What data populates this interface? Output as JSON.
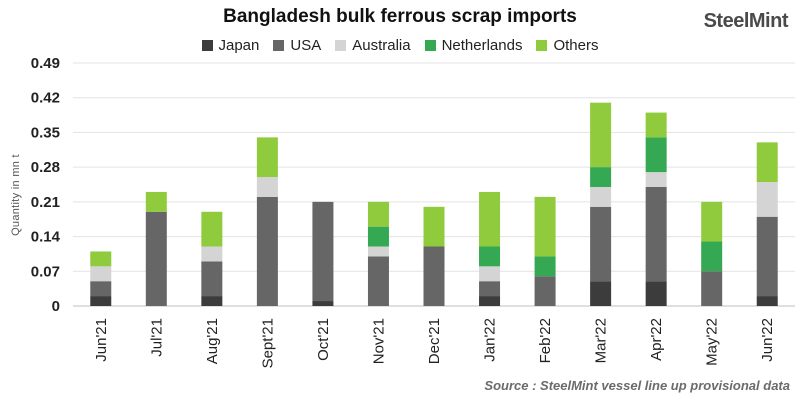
{
  "brand": "SteelMint",
  "source": "Source : SteelMint  vessel line up provisional data",
  "chart_data": {
    "type": "bar",
    "stacked": true,
    "title": "Bangladesh bulk ferrous scrap imports",
    "ylabel": "Quantity in mn t",
    "xlabel": "",
    "ylim": [
      0,
      0.49
    ],
    "yticks": [
      "0",
      "0.07",
      "0.14",
      "0.21",
      "0.28",
      "0.35",
      "0.42",
      "0.49"
    ],
    "grid": true,
    "legend_position": "top",
    "categories": [
      "Jun'21",
      "Jul'21",
      "Aug'21",
      "Sept'21",
      "Oct'21",
      "Nov'21",
      "Dec'21",
      "Jan'22",
      "Feb'22",
      "Mar'22",
      "Apr'22",
      "May'22",
      "Jun'22"
    ],
    "series": [
      {
        "name": "Japan",
        "color": "#3c3c3c",
        "values": [
          0.02,
          0,
          0.02,
          0,
          0.01,
          0,
          0,
          0.02,
          0,
          0.05,
          0.05,
          0,
          0.02
        ]
      },
      {
        "name": "USA",
        "color": "#666666",
        "values": [
          0.03,
          0.19,
          0.07,
          0.22,
          0.2,
          0.1,
          0.12,
          0.03,
          0.06,
          0.15,
          0.19,
          0.07,
          0.16
        ]
      },
      {
        "name": "Australia",
        "color": "#d4d4d4",
        "values": [
          0.03,
          0,
          0.03,
          0.04,
          0,
          0.02,
          0,
          0.03,
          0,
          0.04,
          0.03,
          0,
          0.07
        ]
      },
      {
        "name": "Netherlands",
        "color": "#34a853",
        "values": [
          0,
          0,
          0,
          0,
          0,
          0.04,
          0,
          0.04,
          0.04,
          0.04,
          0.07,
          0.06,
          0
        ]
      },
      {
        "name": "Others",
        "color": "#8fcb3c",
        "values": [
          0.03,
          0.04,
          0.07,
          0.08,
          0,
          0.05,
          0.08,
          0.11,
          0.12,
          0.13,
          0.05,
          0.08,
          0.08
        ]
      }
    ]
  }
}
